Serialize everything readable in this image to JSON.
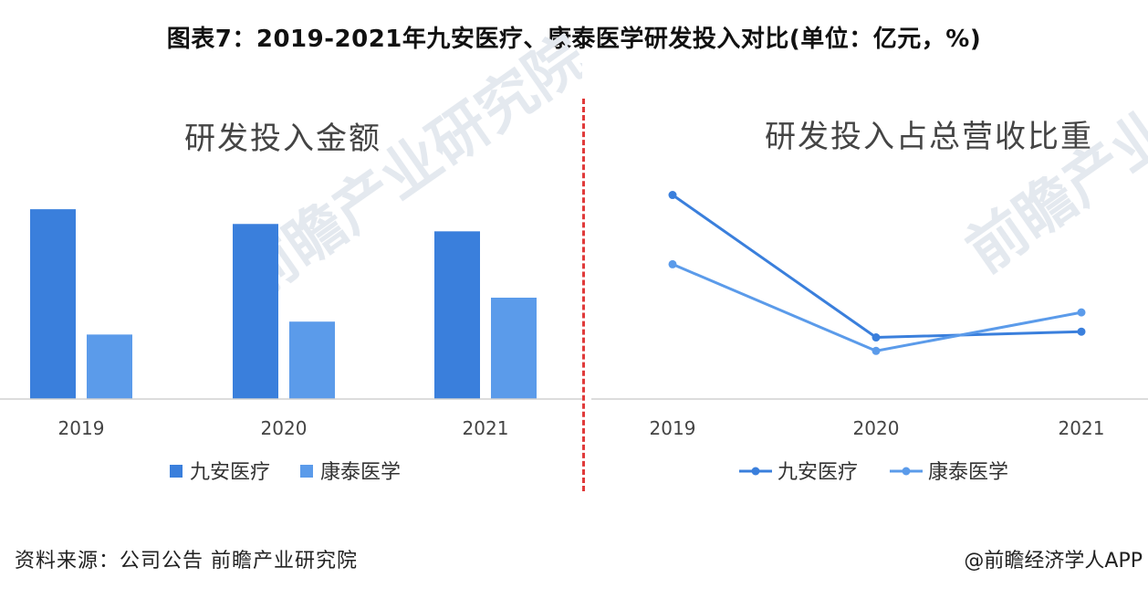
{
  "title": "图表7：2019-2021年九安医疗、康泰医学研发投入对比(单位：亿元，%)",
  "source": "资料来源：公司公告 前瞻产业研究院",
  "credit": "@前瞻经济学人APP",
  "watermark": "前瞻产业研究院",
  "colors": {
    "jiuan": "#3a7fdc",
    "kangtai": "#5b9bea",
    "divider": "#e03a3a",
    "axis": "#d0d0d0"
  },
  "chart_data": [
    {
      "type": "bar",
      "title": "研发投入金额",
      "categories": [
        "2019",
        "2020",
        "2021"
      ],
      "series": [
        {
          "name": "九安医疗",
          "values": [
            1.03,
            0.95,
            0.91
          ]
        },
        {
          "name": "康泰医学",
          "values": [
            0.35,
            0.42,
            0.55
          ]
        }
      ],
      "ylim": [
        0,
        1.1
      ],
      "legend": "bottom"
    },
    {
      "type": "line",
      "title": "研发投入占总营收比重",
      "categories": [
        "2019",
        "2020",
        "2021"
      ],
      "series": [
        {
          "name": "九安医疗",
          "values": [
            10.6,
            3.2,
            3.5
          ]
        },
        {
          "name": "康泰医学",
          "values": [
            7.0,
            2.5,
            4.5
          ]
        }
      ],
      "ylim": [
        0,
        12
      ],
      "legend": "bottom"
    }
  ]
}
